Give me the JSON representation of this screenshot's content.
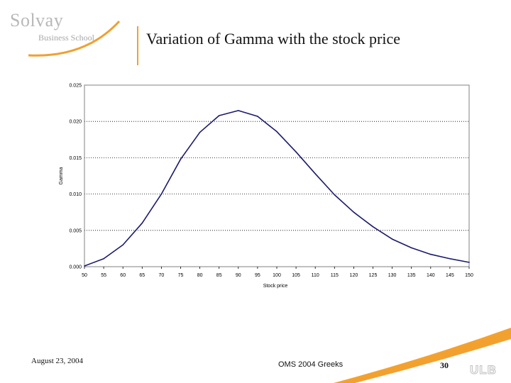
{
  "brand": {
    "name": "Solvay",
    "subtitle": "Business School",
    "mark": "ULB"
  },
  "slide": {
    "title": "Variation of Gamma with the stock price"
  },
  "footer": {
    "date": "August 23, 2004",
    "center": "OMS 2004 Greeks",
    "page": "30"
  },
  "colors": {
    "accent": "#f0a030",
    "line": "#1a1a6e",
    "grid": "#000000"
  },
  "chart_data": {
    "type": "line",
    "title": "",
    "xlabel": "Stock price",
    "ylabel": "Gamma",
    "x": [
      50,
      55,
      60,
      65,
      70,
      75,
      80,
      85,
      90,
      95,
      100,
      105,
      110,
      115,
      120,
      125,
      130,
      135,
      140,
      145,
      150
    ],
    "series": [
      {
        "values": [
          0.0001,
          0.0011,
          0.003,
          0.006,
          0.01,
          0.0148,
          0.0185,
          0.0208,
          0.0215,
          0.0207,
          0.0186,
          0.0158,
          0.0128,
          0.0099,
          0.0075,
          0.0055,
          0.0038,
          0.0026,
          0.0017,
          0.0011,
          0.0006
        ]
      }
    ],
    "xlim": [
      50,
      150
    ],
    "ylim": [
      0,
      0.025
    ],
    "yticks": [
      "0.000",
      "0.005",
      "0.010",
      "0.015",
      "0.020",
      "0.025"
    ],
    "xticks": [
      "50",
      "55",
      "60",
      "65",
      "70",
      "75",
      "80",
      "85",
      "90",
      "95",
      "100",
      "105",
      "110",
      "115",
      "120",
      "125",
      "130",
      "135",
      "140",
      "145",
      "150"
    ],
    "grid": "horizontal dotted",
    "legend": "none"
  }
}
